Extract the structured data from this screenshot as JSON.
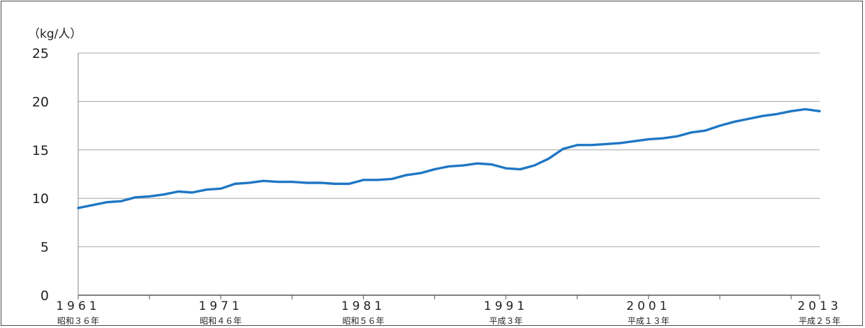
{
  "chart_data": {
    "type": "line",
    "ylabel": "（kg/人）",
    "ylim": [
      0,
      25
    ],
    "yticks": [
      "0",
      "5",
      "10",
      "15",
      "20",
      "25"
    ],
    "xlim": [
      1961,
      2013
    ],
    "xticks": [
      {
        "year": 1961,
        "label": "1961",
        "sublabel": "昭和３６年"
      },
      {
        "year": 1971,
        "label": "1971",
        "sublabel": "昭和４６年"
      },
      {
        "year": 1981,
        "label": "1981",
        "sublabel": "昭和５６年"
      },
      {
        "year": 1991,
        "label": "1991",
        "sublabel": "平成３年"
      },
      {
        "year": 2001,
        "label": "2001",
        "sublabel": "平成１３年"
      },
      {
        "year": 2013,
        "label": "2013",
        "sublabel": "平成２５年"
      }
    ],
    "grid": true,
    "legend": "none",
    "series": [
      {
        "color": "#1f77c4",
        "x": [
          1961,
          1962,
          1963,
          1964,
          1965,
          1966,
          1967,
          1968,
          1969,
          1970,
          1971,
          1972,
          1973,
          1974,
          1975,
          1976,
          1977,
          1978,
          1979,
          1980,
          1981,
          1982,
          1983,
          1984,
          1985,
          1986,
          1987,
          1988,
          1989,
          1990,
          1991,
          1992,
          1993,
          1994,
          1995,
          1996,
          1997,
          1998,
          1999,
          2000,
          2001,
          2002,
          2003,
          2004,
          2005,
          2006,
          2007,
          2008,
          2009,
          2010,
          2011,
          2012,
          2013
        ],
        "values": [
          9.0,
          9.3,
          9.6,
          9.7,
          10.1,
          10.2,
          10.4,
          10.7,
          10.6,
          10.9,
          11.0,
          11.5,
          11.6,
          11.8,
          11.7,
          11.7,
          11.6,
          11.6,
          11.5,
          11.5,
          11.9,
          11.9,
          12.0,
          12.4,
          12.6,
          13.0,
          13.3,
          13.4,
          13.6,
          13.5,
          13.1,
          13.0,
          13.4,
          14.1,
          15.1,
          15.5,
          15.5,
          15.6,
          15.7,
          15.9,
          16.1,
          16.2,
          16.4,
          16.8,
          17.0,
          17.5,
          17.9,
          18.2,
          18.5,
          18.7,
          19.0,
          19.2,
          19.0
        ]
      }
    ]
  }
}
